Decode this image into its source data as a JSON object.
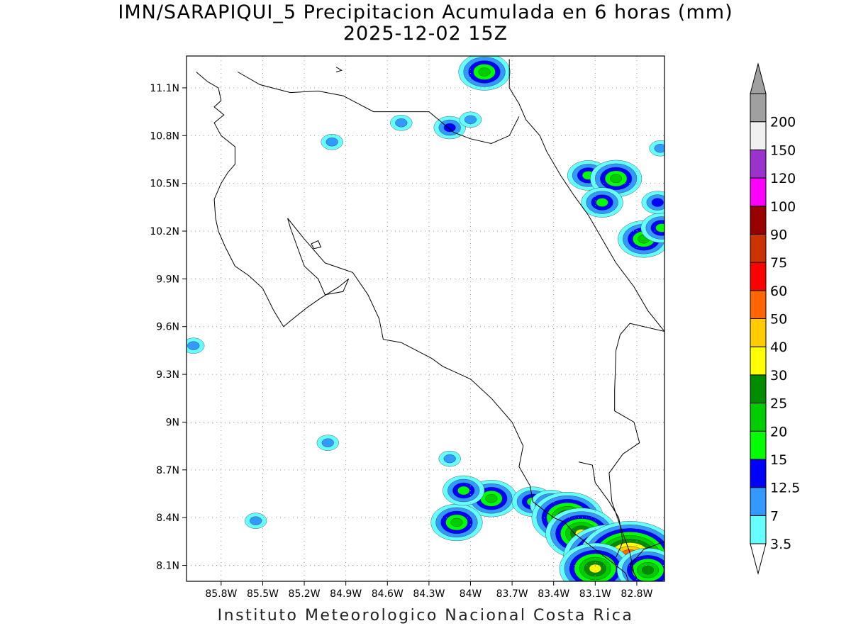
{
  "title_line1": "IMN/SARAPIQUI_5 Precipitacion Acumulada en 6 horas (mm)",
  "title_line2": "2025-12-02 15Z",
  "footer": "Instituto Meteorologico Nacional Costa Rica",
  "map": {
    "lon_range": [
      -86.05,
      -82.6
    ],
    "lat_range": [
      8.0,
      11.3
    ],
    "lon_ticks": [
      -85.8,
      -85.5,
      -85.2,
      -84.9,
      -84.6,
      -84.3,
      -84.0,
      -83.7,
      -83.4,
      -83.1,
      -82.8
    ],
    "lon_labels": [
      "85.8W",
      "85.5W",
      "85.2W",
      "84.9W",
      "84.6W",
      "84.3W",
      "84W",
      "83.7W",
      "83.4W",
      "83.1W",
      "82.8W"
    ],
    "lat_ticks": [
      8.1,
      8.4,
      8.7,
      9.0,
      9.3,
      9.6,
      9.9,
      10.2,
      10.5,
      10.8,
      11.1
    ],
    "lat_labels": [
      "8.1N",
      "8.4N",
      "8.7N",
      "9N",
      "9.3N",
      "9.6N",
      "9.9N",
      "10.2N",
      "10.5N",
      "10.8N",
      "11.1N"
    ],
    "grid": "dotted",
    "coastline": [
      [
        -85.98,
        11.2
      ],
      [
        -85.9,
        11.14
      ],
      [
        -85.82,
        11.1
      ],
      [
        -85.8,
        11.02
      ],
      [
        -85.85,
        10.98
      ],
      [
        -85.78,
        10.93
      ],
      [
        -85.85,
        10.88
      ],
      [
        -85.8,
        10.8
      ],
      [
        -85.7,
        10.73
      ],
      [
        -85.7,
        10.62
      ],
      [
        -85.75,
        10.57
      ],
      [
        -85.8,
        10.5
      ],
      [
        -85.85,
        10.4
      ],
      [
        -85.84,
        10.28
      ],
      [
        -85.82,
        10.2
      ],
      [
        -85.77,
        10.1
      ],
      [
        -85.7,
        9.98
      ],
      [
        -85.6,
        9.92
      ],
      [
        -85.5,
        9.84
      ],
      [
        -85.42,
        9.7
      ],
      [
        -85.35,
        9.6
      ],
      [
        -85.28,
        9.65
      ],
      [
        -85.18,
        9.72
      ],
      [
        -85.08,
        9.78
      ],
      [
        -84.95,
        9.85
      ],
      [
        -84.88,
        9.9
      ],
      [
        -84.92,
        9.82
      ],
      [
        -85.05,
        9.8
      ],
      [
        -85.1,
        9.9
      ],
      [
        -85.2,
        9.98
      ],
      [
        -85.25,
        10.1
      ],
      [
        -85.3,
        10.22
      ],
      [
        -85.32,
        10.28
      ],
      [
        -85.2,
        10.15
      ],
      [
        -85.05,
        10.0
      ],
      [
        -84.85,
        9.94
      ],
      [
        -84.74,
        9.8
      ],
      [
        -84.66,
        9.65
      ],
      [
        -84.63,
        9.52
      ],
      [
        -84.5,
        9.5
      ],
      [
        -84.28,
        9.4
      ],
      [
        -84.2,
        9.35
      ],
      [
        -84.0,
        9.27
      ],
      [
        -83.85,
        9.15
      ],
      [
        -83.7,
        9.0
      ],
      [
        -83.62,
        8.85
      ],
      [
        -83.65,
        8.72
      ],
      [
        -83.57,
        8.6
      ],
      [
        -83.55,
        8.5
      ],
      [
        -83.4,
        8.4
      ],
      [
        -83.32,
        8.37
      ],
      [
        -83.25,
        8.3
      ],
      [
        -83.1,
        8.2
      ],
      [
        -82.95,
        8.1
      ],
      [
        -82.88,
        8.05
      ],
      [
        -82.86,
        8.0
      ]
    ],
    "caribbean_coast": [
      [
        -83.72,
        11.28
      ],
      [
        -83.72,
        11.1
      ],
      [
        -83.65,
        11.0
      ],
      [
        -83.6,
        10.9
      ],
      [
        -83.5,
        10.8
      ],
      [
        -83.45,
        10.7
      ],
      [
        -83.35,
        10.55
      ],
      [
        -83.25,
        10.42
      ],
      [
        -83.15,
        10.3
      ],
      [
        -83.05,
        10.15
      ],
      [
        -82.95,
        10.0
      ],
      [
        -82.82,
        9.85
      ],
      [
        -82.72,
        9.7
      ],
      [
        -82.6,
        9.57
      ]
    ],
    "nicaragua_border": [
      [
        -85.68,
        11.2
      ],
      [
        -85.52,
        11.12
      ],
      [
        -85.3,
        11.07
      ],
      [
        -85.1,
        11.08
      ],
      [
        -84.92,
        11.05
      ],
      [
        -84.7,
        10.95
      ],
      [
        -84.45,
        10.95
      ],
      [
        -84.3,
        10.95
      ],
      [
        -84.12,
        10.82
      ],
      [
        -84.0,
        10.78
      ],
      [
        -83.85,
        10.75
      ],
      [
        -83.72,
        10.8
      ],
      [
        -83.65,
        10.92
      ]
    ],
    "panama_border_north": [
      [
        -82.6,
        9.57
      ],
      [
        -82.85,
        9.62
      ],
      [
        -82.92,
        9.55
      ],
      [
        -82.95,
        9.45
      ],
      [
        -82.96,
        9.2
      ],
      [
        -82.96,
        9.07
      ],
      [
        -82.82,
        9.0
      ],
      [
        -82.78,
        8.87
      ],
      [
        -82.9,
        8.8
      ],
      [
        -83.0,
        8.68
      ],
      [
        -82.98,
        8.5
      ],
      [
        -82.9,
        8.3
      ],
      [
        -82.85,
        8.18
      ],
      [
        -82.82,
        8.05
      ]
    ],
    "peninsula_osa": [
      [
        -83.22,
        8.75
      ],
      [
        -83.12,
        8.73
      ],
      [
        -83.1,
        8.62
      ],
      [
        -83.0,
        8.5
      ],
      [
        -82.93,
        8.4
      ],
      [
        -82.9,
        8.25
      ],
      [
        -82.95,
        8.15
      ]
    ],
    "panama_coast": [
      [
        -82.6,
        8.25
      ],
      [
        -82.75,
        8.2
      ],
      [
        -82.85,
        8.1
      ],
      [
        -82.8,
        8.02
      ]
    ],
    "islet": [
      [
        -84.97,
        11.23
      ],
      [
        -84.93,
        11.21
      ],
      [
        -84.97,
        11.2
      ]
    ],
    "chira": [
      [
        -85.15,
        10.12
      ],
      [
        -85.1,
        10.14
      ],
      [
        -85.08,
        10.1
      ],
      [
        -85.13,
        10.09
      ],
      [
        -85.15,
        10.12
      ]
    ]
  },
  "legend": {
    "labels": [
      "3.5",
      "7",
      "12.5",
      "15",
      "20",
      "25",
      "30",
      "40",
      "50",
      "60",
      "75",
      "90",
      "100",
      "120",
      "150",
      "200"
    ],
    "colors": [
      "#66ffff",
      "#3399ff",
      "#0000ff",
      "#00ff00",
      "#00cc00",
      "#008c00",
      "#ffff00",
      "#ffcc00",
      "#ff6600",
      "#ff0000",
      "#cc3300",
      "#990000",
      "#ff00ff",
      "#9933cc",
      "#f0f0f0",
      "#a0a0a0"
    ]
  },
  "precip_cells": [
    {
      "lon": -83.9,
      "lat": 11.2,
      "level": 4
    },
    {
      "lon": -84.15,
      "lat": 10.85,
      "level": 2
    },
    {
      "lon": -84.0,
      "lat": 10.9,
      "level": 1
    },
    {
      "lon": -84.5,
      "lat": 10.88,
      "level": 1
    },
    {
      "lon": -85.0,
      "lat": 10.76,
      "level": 1
    },
    {
      "lon": -83.15,
      "lat": 10.55,
      "level": 3
    },
    {
      "lon": -82.95,
      "lat": 10.53,
      "level": 4
    },
    {
      "lon": -83.05,
      "lat": 10.38,
      "level": 3
    },
    {
      "lon": -82.75,
      "lat": 10.15,
      "level": 4
    },
    {
      "lon": -82.62,
      "lat": 10.22,
      "level": 3
    },
    {
      "lon": -82.65,
      "lat": 10.38,
      "level": 2
    },
    {
      "lon": -82.63,
      "lat": 10.72,
      "level": 1
    },
    {
      "lon": -83.85,
      "lat": 8.52,
      "level": 4
    },
    {
      "lon": -83.55,
      "lat": 8.5,
      "level": 3
    },
    {
      "lon": -83.42,
      "lat": 8.48,
      "level": 3
    },
    {
      "lon": -83.3,
      "lat": 8.4,
      "level": 6
    },
    {
      "lon": -84.1,
      "lat": 8.37,
      "level": 4
    },
    {
      "lon": -84.05,
      "lat": 8.57,
      "level": 3
    },
    {
      "lon": -84.15,
      "lat": 8.77,
      "level": 1
    },
    {
      "lon": -83.2,
      "lat": 8.3,
      "level": 6
    },
    {
      "lon": -83.0,
      "lat": 8.15,
      "level": 8
    },
    {
      "lon": -82.85,
      "lat": 8.15,
      "level": 9
    },
    {
      "lon": -83.1,
      "lat": 8.08,
      "level": 6
    },
    {
      "lon": -82.72,
      "lat": 8.07,
      "level": 5
    },
    {
      "lon": -85.55,
      "lat": 8.38,
      "level": 1
    },
    {
      "lon": -86.0,
      "lat": 9.48,
      "level": 1
    },
    {
      "lon": -85.03,
      "lat": 8.87,
      "level": 1
    }
  ]
}
